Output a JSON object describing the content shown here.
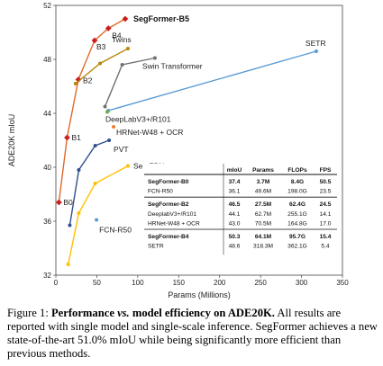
{
  "chart_data": {
    "type": "scatter",
    "xlabel": "Params (Millions)",
    "ylabel": "ADE20K mIoU",
    "xlim": [
      0,
      350
    ],
    "ylim": [
      32,
      52
    ],
    "xticks": [
      "0",
      "50",
      "100",
      "150",
      "200",
      "250",
      "300",
      "350"
    ],
    "yticks": [
      "32",
      "36",
      "40",
      "44",
      "48",
      "52"
    ],
    "grid": false,
    "series": [
      {
        "name": "SegFormer-B5",
        "color": "#cc1f1f",
        "line_color": "#e06a2a",
        "points": [
          {
            "x": 3.7,
            "y": 37.4,
            "label": "B0"
          },
          {
            "x": 13.7,
            "y": 42.2,
            "label": "B1"
          },
          {
            "x": 27.5,
            "y": 46.5,
            "label": "B2"
          },
          {
            "x": 47.3,
            "y": 49.4,
            "label": "B3"
          },
          {
            "x": 64.1,
            "y": 50.3,
            "label": "B4"
          },
          {
            "x": 84.7,
            "y": 51.0,
            "label": "SegFormer-B5"
          }
        ]
      },
      {
        "name": "Twins",
        "color": "#b8860b",
        "points": [
          {
            "x": 24,
            "y": 46.2,
            "label": ""
          },
          {
            "x": 54,
            "y": 47.7,
            "label": ""
          },
          {
            "x": 88,
            "y": 48.8,
            "label": "Twins"
          }
        ]
      },
      {
        "name": "Swin Transformer",
        "color": "#707070",
        "points": [
          {
            "x": 60,
            "y": 44.5,
            "label": ""
          },
          {
            "x": 81,
            "y": 47.6,
            "label": ""
          },
          {
            "x": 121,
            "y": 48.1,
            "label": "Swin Transformer"
          }
        ]
      },
      {
        "name": "SETR",
        "color": "#5b9bd5",
        "points": [
          {
            "x": 64,
            "y": 44.2,
            "label": ""
          },
          {
            "x": 318,
            "y": 48.6,
            "label": "SETR"
          }
        ]
      },
      {
        "name": "DeepLabV3+/R101",
        "color": "#70ad47",
        "points": [
          {
            "x": 62.7,
            "y": 44.1,
            "label": "DeepLabV3+/R101"
          }
        ]
      },
      {
        "name": "HRNet-W48 + OCR",
        "color": "#ed7d31",
        "points": [
          {
            "x": 70.5,
            "y": 43.0,
            "label": "HRNet-W48 + OCR"
          }
        ]
      },
      {
        "name": "PVT",
        "color": "#2f4f8f",
        "points": [
          {
            "x": 17,
            "y": 35.7,
            "label": ""
          },
          {
            "x": 28,
            "y": 39.8,
            "label": ""
          },
          {
            "x": 48,
            "y": 41.6,
            "label": ""
          },
          {
            "x": 65,
            "y": 42.0,
            "label": "PVT"
          }
        ]
      },
      {
        "name": "SemFPN",
        "color": "#ffc000",
        "points": [
          {
            "x": 15,
            "y": 32.8,
            "label": ""
          },
          {
            "x": 28,
            "y": 36.6,
            "label": ""
          },
          {
            "x": 48,
            "y": 38.8,
            "label": ""
          },
          {
            "x": 88,
            "y": 40.1,
            "label": "SemFPN"
          }
        ]
      },
      {
        "name": "FCN-R50",
        "color": "#5b9bd5",
        "points": [
          {
            "x": 49.6,
            "y": 36.1,
            "label": "FCN-R50"
          }
        ]
      }
    ]
  },
  "table": {
    "headers": [
      "",
      "mIoU",
      "Params",
      "FLOPs",
      "FPS"
    ],
    "groups": [
      {
        "rows": [
          {
            "model": "SegFormer-B0",
            "miou": "37.4",
            "params": "3.7M",
            "flops": "8.4G",
            "fps": "50.5",
            "bold": true
          },
          {
            "model": "FCN-R50",
            "miou": "36.1",
            "params": "49.6M",
            "flops": "198.0G",
            "fps": "23.5",
            "bold": false
          }
        ]
      },
      {
        "rows": [
          {
            "model": "SegFormer-B2",
            "miou": "46.5",
            "params": "27.5M",
            "flops": "62.4G",
            "fps": "24.5",
            "bold": true
          },
          {
            "model": "DeeplabV3+/R101",
            "miou": "44.1",
            "params": "62.7M",
            "flops": "255.1G",
            "fps": "14.1",
            "bold": false
          },
          {
            "model": "HRNet-W48 + OCR",
            "miou": "43.0",
            "params": "70.5M",
            "flops": "164.8G",
            "fps": "17.0",
            "bold": false
          }
        ]
      },
      {
        "rows": [
          {
            "model": "SegFormer-B4",
            "miou": "50.3",
            "params": "64.1M",
            "flops": "95.7G",
            "fps": "15.4",
            "bold": true
          },
          {
            "model": "SETR",
            "miou": "48.6",
            "params": "318.3M",
            "flops": "362.1G",
            "fps": "5.4",
            "bold": false
          }
        ]
      }
    ]
  },
  "caption": {
    "prefix": "Figure 1: ",
    "bold_a": "Performance ",
    "italic_vs": "vs.",
    "bold_b": " model efficiency on ADE20K.",
    "rest": " All results are reported with single model and single-scale inference. SegFormer achieves a new state-of-the-art 51.0% mIoU while being significantly more efficient than previous methods."
  }
}
